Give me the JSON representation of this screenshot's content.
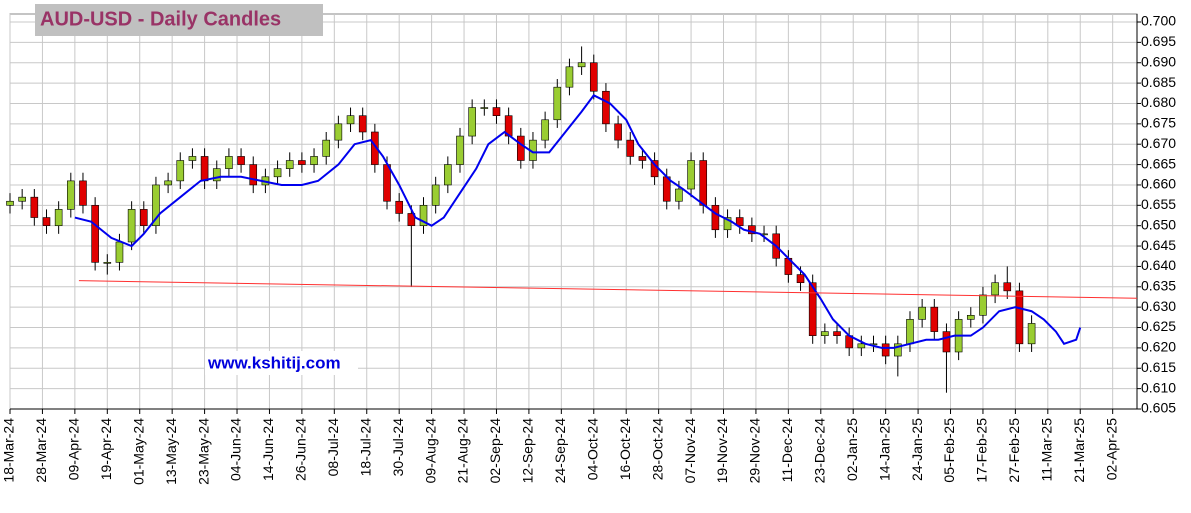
{
  "chart_data": {
    "type": "candlestick",
    "title": "AUD-USD - Daily Candles",
    "watermark": "www.kshitij.com",
    "up_color": "#9acd32",
    "down_color": "#e00000",
    "wick_color": "#000000",
    "grid": true,
    "xlim": [
      0,
      278
    ],
    "ylim": [
      0.605,
      0.7
    ],
    "x": [
      0,
      3,
      6,
      9,
      12,
      15,
      18,
      21,
      24,
      27,
      30,
      33,
      36,
      39,
      42,
      45,
      48,
      51,
      54,
      57,
      60,
      63,
      66,
      69,
      72,
      75,
      78,
      81,
      84,
      87,
      90,
      93,
      96,
      99,
      102,
      105,
      108,
      111,
      114,
      117,
      120,
      123,
      126,
      129,
      132,
      135,
      138,
      141,
      144,
      147,
      150,
      153,
      156,
      159,
      162,
      165,
      168,
      171,
      174,
      177,
      180,
      183,
      186,
      189,
      192,
      195,
      198,
      201,
      204,
      207,
      210,
      213,
      216,
      219,
      222,
      225,
      228,
      231,
      234,
      237,
      240,
      243,
      246,
      249,
      252
    ],
    "open": [
      0.655,
      0.656,
      0.657,
      0.652,
      0.65,
      0.654,
      0.661,
      0.655,
      0.641,
      0.641,
      0.646,
      0.654,
      0.65,
      0.66,
      0.661,
      0.666,
      0.667,
      0.661,
      0.664,
      0.667,
      0.665,
      0.66,
      0.662,
      0.664,
      0.666,
      0.665,
      0.667,
      0.671,
      0.675,
      0.677,
      0.673,
      0.665,
      0.656,
      0.653,
      0.65,
      0.655,
      0.66,
      0.665,
      0.672,
      0.679,
      0.679,
      0.677,
      0.672,
      0.666,
      0.671,
      0.676,
      0.684,
      0.689,
      0.69,
      0.683,
      0.675,
      0.671,
      0.667,
      0.666,
      0.662,
      0.656,
      0.659,
      0.666,
      0.655,
      0.649,
      0.652,
      0.65,
      0.648,
      0.648,
      0.642,
      0.638,
      0.636,
      0.623,
      0.624,
      0.623,
      0.62,
      0.621,
      0.621,
      0.618,
      0.621,
      0.627,
      0.63,
      0.624,
      0.619,
      0.627,
      0.628,
      0.633,
      0.636,
      0.634,
      0.621
    ],
    "high": [
      0.658,
      0.659,
      0.659,
      0.654,
      0.656,
      0.663,
      0.663,
      0.657,
      0.643,
      0.648,
      0.656,
      0.656,
      0.662,
      0.663,
      0.668,
      0.669,
      0.669,
      0.666,
      0.669,
      0.669,
      0.667,
      0.664,
      0.666,
      0.668,
      0.668,
      0.669,
      0.673,
      0.677,
      0.679,
      0.679,
      0.675,
      0.667,
      0.658,
      0.655,
      0.657,
      0.662,
      0.667,
      0.674,
      0.681,
      0.681,
      0.681,
      0.679,
      0.674,
      0.673,
      0.678,
      0.686,
      0.691,
      0.694,
      0.692,
      0.685,
      0.677,
      0.673,
      0.669,
      0.668,
      0.664,
      0.661,
      0.668,
      0.668,
      0.657,
      0.654,
      0.654,
      0.652,
      0.65,
      0.65,
      0.644,
      0.64,
      0.638,
      0.626,
      0.626,
      0.625,
      0.623,
      0.623,
      0.623,
      0.623,
      0.629,
      0.632,
      0.632,
      0.626,
      0.629,
      0.63,
      0.635,
      0.638,
      0.64,
      0.636,
      0.628
    ],
    "low": [
      0.653,
      0.654,
      0.65,
      0.648,
      0.648,
      0.652,
      0.653,
      0.639,
      0.638,
      0.639,
      0.644,
      0.648,
      0.648,
      0.658,
      0.659,
      0.664,
      0.659,
      0.659,
      0.662,
      0.663,
      0.658,
      0.658,
      0.66,
      0.662,
      0.663,
      0.663,
      0.665,
      0.669,
      0.673,
      0.671,
      0.663,
      0.654,
      0.651,
      0.635,
      0.648,
      0.653,
      0.658,
      0.663,
      0.67,
      0.677,
      0.675,
      0.67,
      0.664,
      0.664,
      0.669,
      0.674,
      0.682,
      0.687,
      0.681,
      0.673,
      0.669,
      0.665,
      0.664,
      0.66,
      0.654,
      0.654,
      0.657,
      0.653,
      0.647,
      0.647,
      0.648,
      0.646,
      0.646,
      0.64,
      0.636,
      0.634,
      0.621,
      0.621,
      0.621,
      0.618,
      0.618,
      0.619,
      0.616,
      0.613,
      0.619,
      0.625,
      0.622,
      0.609,
      0.617,
      0.625,
      0.626,
      0.631,
      0.632,
      0.619,
      0.619
    ],
    "close": [
      0.656,
      0.657,
      0.652,
      0.65,
      0.654,
      0.661,
      0.655,
      0.641,
      0.641,
      0.646,
      0.654,
      0.65,
      0.66,
      0.661,
      0.666,
      0.667,
      0.661,
      0.664,
      0.667,
      0.665,
      0.66,
      0.662,
      0.664,
      0.666,
      0.665,
      0.667,
      0.671,
      0.675,
      0.677,
      0.673,
      0.665,
      0.656,
      0.653,
      0.65,
      0.655,
      0.66,
      0.665,
      0.672,
      0.679,
      0.679,
      0.677,
      0.672,
      0.666,
      0.671,
      0.676,
      0.684,
      0.689,
      0.69,
      0.683,
      0.675,
      0.671,
      0.667,
      0.666,
      0.662,
      0.656,
      0.659,
      0.666,
      0.655,
      0.649,
      0.652,
      0.65,
      0.648,
      0.648,
      0.642,
      0.638,
      0.636,
      0.623,
      0.624,
      0.623,
      0.62,
      0.621,
      0.621,
      0.618,
      0.621,
      0.627,
      0.63,
      0.624,
      0.619,
      0.627,
      0.628,
      0.633,
      0.636,
      0.634,
      0.621,
      0.626
    ],
    "lines": [
      {
        "color": "#0000ee",
        "width": 2,
        "x": [
          16,
          20,
          25,
          30,
          33,
          37,
          42,
          47,
          52,
          57,
          62,
          67,
          72,
          76,
          81,
          85,
          89,
          92,
          96,
          100,
          104,
          107,
          111,
          115,
          118,
          122,
          126,
          129,
          133,
          137,
          141,
          144,
          148,
          152,
          155,
          159,
          163,
          166,
          170,
          174,
          178,
          181,
          185,
          189,
          192,
          196,
          200,
          203,
          207,
          211,
          215,
          218,
          222,
          226,
          229,
          233,
          237,
          240,
          244,
          248,
          252,
          255,
          258,
          260,
          263,
          264
        ],
        "values": [
          0.652,
          0.651,
          0.647,
          0.645,
          0.648,
          0.653,
          0.657,
          0.661,
          0.662,
          0.662,
          0.661,
          0.66,
          0.66,
          0.661,
          0.665,
          0.67,
          0.671,
          0.667,
          0.66,
          0.652,
          0.65,
          0.652,
          0.658,
          0.664,
          0.67,
          0.673,
          0.67,
          0.668,
          0.668,
          0.673,
          0.678,
          0.682,
          0.68,
          0.676,
          0.67,
          0.665,
          0.661,
          0.659,
          0.656,
          0.653,
          0.651,
          0.649,
          0.648,
          0.645,
          0.642,
          0.638,
          0.632,
          0.627,
          0.623,
          0.621,
          0.62,
          0.62,
          0.621,
          0.622,
          0.622,
          0.623,
          0.623,
          0.625,
          0.629,
          0.63,
          0.629,
          0.627,
          0.624,
          0.621,
          0.622,
          0.625
        ]
      },
      {
        "color": "#ff3030",
        "width": 1,
        "x": [
          17,
          278
        ],
        "values": [
          0.6365,
          0.6322
        ]
      }
    ],
    "yticks": [
      {
        "value": 0.605,
        "label": "0.605"
      },
      {
        "value": 0.61,
        "label": "0.610"
      },
      {
        "value": 0.615,
        "label": "0.615"
      },
      {
        "value": 0.62,
        "label": "0.620"
      },
      {
        "value": 0.625,
        "label": "0.625"
      },
      {
        "value": 0.63,
        "label": "0.630"
      },
      {
        "value": 0.635,
        "label": "0.635"
      },
      {
        "value": 0.64,
        "label": "0.640"
      },
      {
        "value": 0.645,
        "label": "0.645"
      },
      {
        "value": 0.65,
        "label": "0.650"
      },
      {
        "value": 0.655,
        "label": "0.655"
      },
      {
        "value": 0.66,
        "label": "0.660"
      },
      {
        "value": 0.665,
        "label": "0.665"
      },
      {
        "value": 0.67,
        "label": "0.670"
      },
      {
        "value": 0.675,
        "label": "0.675"
      },
      {
        "value": 0.68,
        "label": "0.680"
      },
      {
        "value": 0.685,
        "label": "0.685"
      },
      {
        "value": 0.69,
        "label": "0.690"
      },
      {
        "value": 0.695,
        "label": "0.695"
      },
      {
        "value": 0.7,
        "label": "0.700"
      }
    ],
    "xticks": [
      {
        "value": 0,
        "label": "18-Mar-24"
      },
      {
        "value": 8,
        "label": "28-Mar-24"
      },
      {
        "value": 16,
        "label": "09-Apr-24"
      },
      {
        "value": 24,
        "label": "19-Apr-24"
      },
      {
        "value": 32,
        "label": "01-May-24"
      },
      {
        "value": 40,
        "label": "13-May-24"
      },
      {
        "value": 48,
        "label": "23-May-24"
      },
      {
        "value": 56,
        "label": "04-Jun-24"
      },
      {
        "value": 64,
        "label": "14-Jun-24"
      },
      {
        "value": 72,
        "label": "26-Jun-24"
      },
      {
        "value": 80,
        "label": "08-Jul-24"
      },
      {
        "value": 88,
        "label": "18-Jul-24"
      },
      {
        "value": 96,
        "label": "30-Jul-24"
      },
      {
        "value": 104,
        "label": "09-Aug-24"
      },
      {
        "value": 112,
        "label": "21-Aug-24"
      },
      {
        "value": 120,
        "label": "02-Sep-24"
      },
      {
        "value": 128,
        "label": "12-Sep-24"
      },
      {
        "value": 136,
        "label": "24-Sep-24"
      },
      {
        "value": 144,
        "label": "04-Oct-24"
      },
      {
        "value": 152,
        "label": "16-Oct-24"
      },
      {
        "value": 160,
        "label": "28-Oct-24"
      },
      {
        "value": 168,
        "label": "07-Nov-24"
      },
      {
        "value": 176,
        "label": "19-Nov-24"
      },
      {
        "value": 184,
        "label": "29-Nov-24"
      },
      {
        "value": 192,
        "label": "11-Dec-24"
      },
      {
        "value": 200,
        "label": "23-Dec-24"
      },
      {
        "value": 208,
        "label": "02-Jan-25"
      },
      {
        "value": 216,
        "label": "14-Jan-25"
      },
      {
        "value": 224,
        "label": "24-Jan-25"
      },
      {
        "value": 232,
        "label": "05-Feb-25"
      },
      {
        "value": 240,
        "label": "17-Feb-25"
      },
      {
        "value": 248,
        "label": "27-Feb-25"
      },
      {
        "value": 256,
        "label": "11-Mar-25"
      },
      {
        "value": 264,
        "label": "21-Mar-25"
      },
      {
        "value": 272,
        "label": "02-Apr-25"
      }
    ]
  }
}
